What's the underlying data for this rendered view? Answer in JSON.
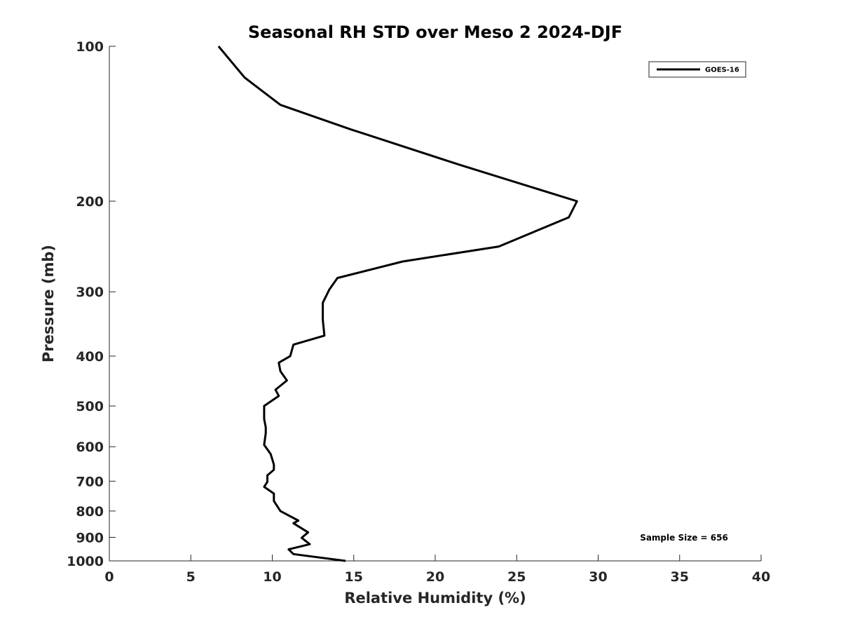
{
  "chart_data": {
    "type": "line",
    "title": "Seasonal RH STD over Meso 2  2024-DJF",
    "xlabel": "Relative Humidity (%)",
    "ylabel": "Pressure (mb)",
    "xlim": [
      0,
      40
    ],
    "ylim": [
      1000,
      100
    ],
    "yscale": "log",
    "y_reversed": true,
    "grid": false,
    "x_ticks": [
      "0",
      "5",
      "10",
      "15",
      "20",
      "25",
      "30",
      "35",
      "40"
    ],
    "x_tick_values": [
      0,
      5,
      10,
      15,
      20,
      25,
      30,
      35,
      40
    ],
    "y_ticks": [
      "100",
      "200",
      "300",
      "400",
      "500",
      "600",
      "700",
      "800",
      "900",
      "1000"
    ],
    "y_tick_values": [
      100,
      200,
      300,
      400,
      500,
      600,
      700,
      800,
      900,
      1000
    ],
    "legend_position": "top-right",
    "annotation": "Sample Size = 656",
    "series": [
      {
        "name": "GOES-16",
        "color": "#000000",
        "x": [
          6.7,
          8.3,
          10.5,
          14.8,
          21.5,
          28.7,
          28.2,
          23.9,
          18.0,
          14.0,
          13.5,
          13.1,
          13.1,
          13.2,
          11.3,
          11.1,
          10.4,
          10.5,
          10.9,
          10.2,
          10.4,
          9.5,
          9.5,
          9.6,
          9.6,
          9.5,
          9.9,
          10.1,
          10.1,
          9.7,
          9.7,
          9.5,
          10.1,
          10.1,
          10.5,
          11.6,
          11.3,
          12.2,
          11.8,
          12.3,
          11.0,
          11.3,
          14.5
        ],
        "y": [
          100,
          115,
          130,
          145,
          170,
          200,
          215,
          245,
          262,
          282,
          297,
          315,
          340,
          365,
          380,
          400,
          412,
          428,
          446,
          465,
          478,
          500,
          530,
          550,
          565,
          595,
          620,
          650,
          665,
          682,
          702,
          718,
          740,
          765,
          800,
          835,
          845,
          880,
          902,
          928,
          950,
          970,
          1000
        ]
      }
    ]
  }
}
